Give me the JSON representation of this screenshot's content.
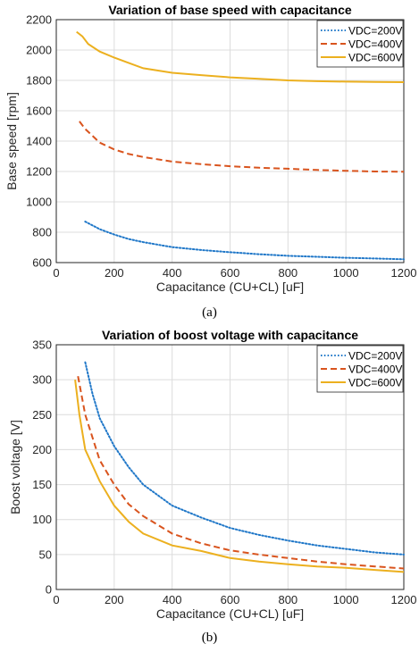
{
  "captions": {
    "a": "(a)",
    "b": "(b)"
  },
  "chart_data": [
    {
      "type": "line",
      "title": "Variation of base speed with capacitance",
      "xlabel": "Capacitance (CU+CL) [uF]",
      "ylabel": "Base speed [rpm]",
      "xlim": [
        0,
        1200
      ],
      "ylim": [
        600,
        2200
      ],
      "xticks": [
        0,
        200,
        400,
        600,
        800,
        1000,
        1200
      ],
      "yticks": [
        600,
        800,
        1000,
        1200,
        1400,
        1600,
        1800,
        2000,
        2200
      ],
      "grid": true,
      "legend_position": "top-right",
      "series": [
        {
          "name": "VDC=200V",
          "color": "#1f77c8",
          "style": "dotted",
          "x": [
            100,
            150,
            200,
            250,
            300,
            400,
            500,
            600,
            700,
            800,
            900,
            1000,
            1100,
            1200
          ],
          "y": [
            870,
            820,
            785,
            755,
            735,
            702,
            683,
            668,
            655,
            645,
            638,
            632,
            627,
            622
          ]
        },
        {
          "name": "VDC=400V",
          "color": "#d9541e",
          "style": "dashed",
          "x": [
            80,
            100,
            150,
            200,
            250,
            300,
            400,
            500,
            600,
            700,
            800,
            900,
            1000,
            1100,
            1200
          ],
          "y": [
            1530,
            1480,
            1390,
            1345,
            1315,
            1295,
            1265,
            1248,
            1235,
            1225,
            1218,
            1210,
            1205,
            1200,
            1198
          ]
        },
        {
          "name": "VDC=600V",
          "color": "#ecb01f",
          "style": "solid",
          "x": [
            70,
            90,
            110,
            150,
            200,
            250,
            300,
            400,
            500,
            600,
            700,
            800,
            900,
            1000,
            1100,
            1200
          ],
          "y": [
            2120,
            2090,
            2040,
            1990,
            1950,
            1915,
            1880,
            1850,
            1835,
            1820,
            1810,
            1800,
            1795,
            1792,
            1790,
            1788
          ]
        }
      ]
    },
    {
      "type": "line",
      "title": "Variation of boost voltage with capacitance",
      "xlabel": "Capacitance (CU+CL) [uF]",
      "ylabel": "Boost voltage [V]",
      "xlim": [
        0,
        1200
      ],
      "ylim": [
        0,
        350
      ],
      "xticks": [
        0,
        200,
        400,
        600,
        800,
        1000,
        1200
      ],
      "yticks": [
        0,
        50,
        100,
        150,
        200,
        250,
        300,
        350
      ],
      "grid": true,
      "legend_position": "top-right",
      "series": [
        {
          "name": "VDC=200V",
          "color": "#1f77c8",
          "style": "dotted",
          "x": [
            100,
            125,
            150,
            200,
            250,
            300,
            400,
            500,
            600,
            700,
            800,
            900,
            1000,
            1100,
            1200
          ],
          "y": [
            325,
            280,
            245,
            205,
            175,
            150,
            120,
            103,
            88,
            78,
            70,
            63,
            58,
            53,
            50
          ]
        },
        {
          "name": "VDC=400V",
          "color": "#d9541e",
          "style": "dashed",
          "x": [
            75,
            100,
            150,
            200,
            250,
            300,
            400,
            500,
            600,
            700,
            800,
            900,
            1000,
            1100,
            1200
          ],
          "y": [
            305,
            250,
            185,
            150,
            122,
            105,
            80,
            66,
            56,
            50,
            45,
            40,
            36,
            33,
            30
          ]
        },
        {
          "name": "VDC=600V",
          "color": "#ecb01f",
          "style": "solid",
          "x": [
            65,
            80,
            100,
            150,
            200,
            250,
            300,
            400,
            500,
            600,
            700,
            800,
            900,
            1000,
            1100,
            1200
          ],
          "y": [
            300,
            250,
            200,
            155,
            120,
            97,
            80,
            63,
            55,
            45,
            40,
            36,
            33,
            31,
            28,
            25
          ]
        }
      ]
    }
  ]
}
